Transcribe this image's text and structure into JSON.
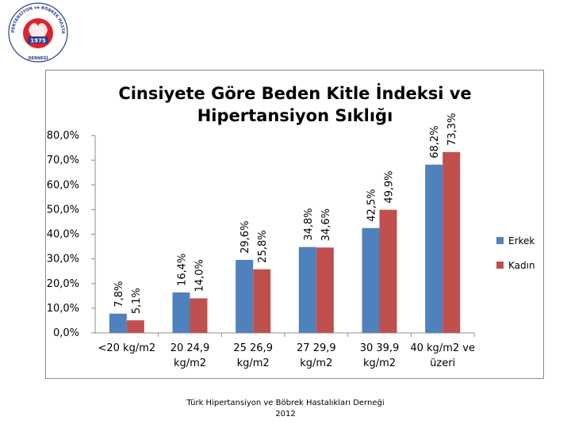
{
  "logo": {
    "year": "1975",
    "ring_text": "TÜRK HİPERTANSİYON ve BÖBREK HASTALIKLARI",
    "bottom_text": "DERNEĞİ",
    "colors": {
      "red": "#e2202e",
      "navy": "#2b3e8c"
    }
  },
  "chart_data": {
    "type": "bar",
    "title": [
      "Cinsiyete Göre Beden Kitle İndeksi ve",
      "Hipertansiyon Sıklığı"
    ],
    "categories": [
      [
        "<20 kg/m2"
      ],
      [
        "20 24,9",
        "kg/m2"
      ],
      [
        "25 26,9",
        "kg/m2"
      ],
      [
        "27 29,9",
        "kg/m2"
      ],
      [
        "30 39,9",
        "kg/m2"
      ],
      [
        "40 kg/m2 ve",
        "üzeri"
      ]
    ],
    "series": [
      {
        "name": "Erkek",
        "values": [
          7.8,
          16.4,
          29.6,
          34.8,
          42.5,
          68.2
        ],
        "labels": [
          "7,8%",
          "16,4%",
          "29,6%",
          "34,8%",
          "42,5%",
          "68,2%"
        ],
        "color": "#4f81bd"
      },
      {
        "name": "Kadın",
        "values": [
          5.1,
          14.0,
          25.8,
          34.6,
          49.9,
          73.3
        ],
        "labels": [
          "5,1%",
          "14,0%",
          "25,8%",
          "34,6%",
          "49,9%",
          "73,3%"
        ],
        "color": "#c0504d"
      }
    ],
    "yticks": [
      "0,0%",
      "10,0%",
      "20,0%",
      "30,0%",
      "40,0%",
      "50,0%",
      "60,0%",
      "70,0%",
      "80,0%"
    ],
    "ylim": [
      0,
      80
    ],
    "grid": false,
    "legend": "right"
  },
  "footer": {
    "line1": "Türk Hipertansiyon ve Böbrek Hastalıkları Derneği",
    "line2": "2012"
  }
}
